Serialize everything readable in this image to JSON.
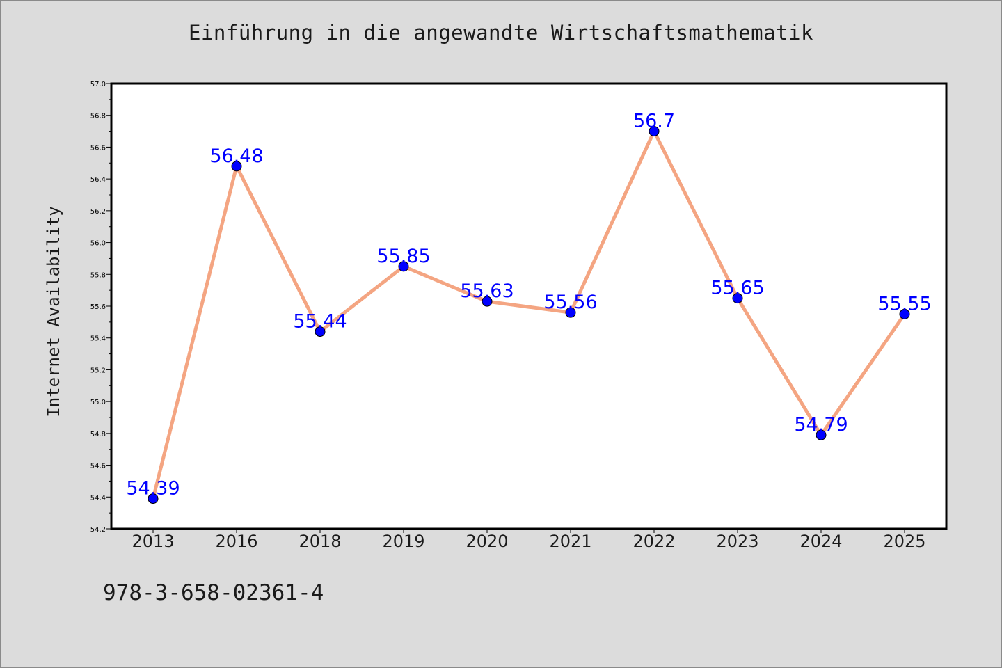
{
  "chart_data": {
    "type": "line",
    "title": "Einführung in die angewandte Wirtschaftsmathematik",
    "xlabel": "",
    "ylabel": "Internet Availability",
    "categories": [
      "2013",
      "2016",
      "2018",
      "2019",
      "2020",
      "2021",
      "2022",
      "2023",
      "2024",
      "2025"
    ],
    "values": [
      54.39,
      56.48,
      55.44,
      55.85,
      55.63,
      55.56,
      56.7,
      55.65,
      54.79,
      55.55
    ],
    "data_labels": [
      "54.39",
      "56.48",
      "55.44",
      "55.85",
      "55.63",
      "55.56",
      "56.7",
      "55.65",
      "54.79",
      "55.55"
    ],
    "ylim": [
      54.2,
      57.0
    ],
    "yticks": [
      "54.2",
      "54.4",
      "54.6",
      "54.8",
      "55.0",
      "55.2",
      "55.4",
      "55.6",
      "55.8",
      "56.0",
      "56.2",
      "56.4",
      "56.6",
      "56.8",
      "57.0"
    ],
    "grid": false,
    "legend": "none",
    "colors": {
      "line": "#f4a582",
      "marker": "#0000ff",
      "label": "#0000ff",
      "plot_bg": "#ffffff",
      "page_bg": "#dcdcdc"
    }
  },
  "footer": {
    "code": "978-3-658-02361-4"
  }
}
